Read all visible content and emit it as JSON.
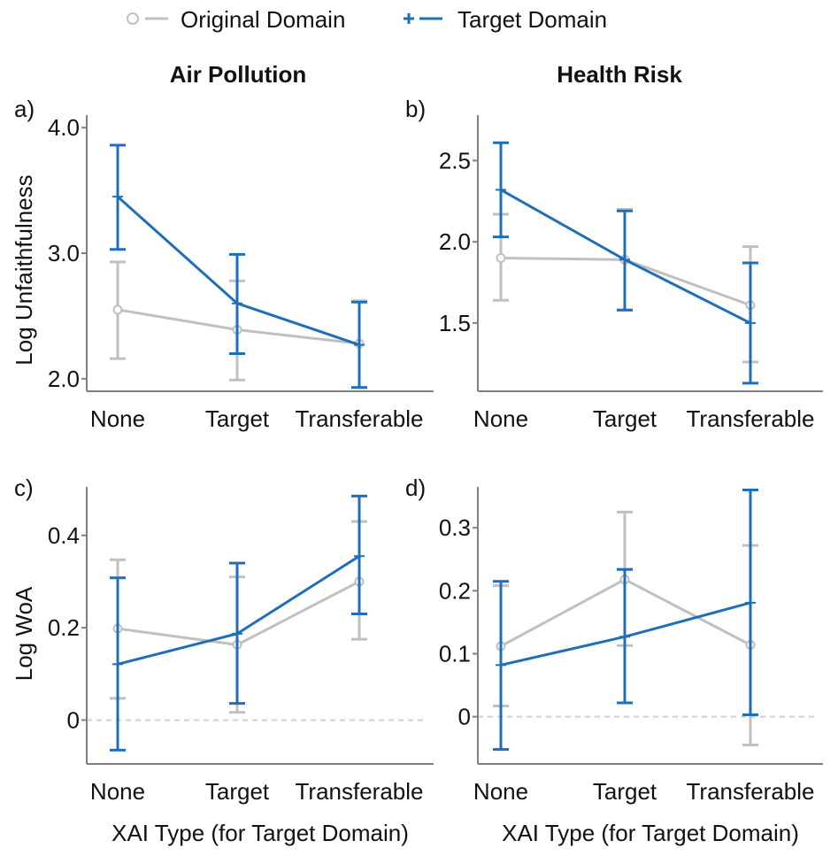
{
  "legend": {
    "original_label": "Original Domain",
    "target_label": "Target Domain"
  },
  "colors": {
    "original": "#c0c0c0",
    "target": "#1f6fb8",
    "axis": "#808080",
    "zero_line": "#d0d0d0"
  },
  "column_titles": [
    "Air Pollution",
    "Health Risk"
  ],
  "chart_data": [
    {
      "type": "line",
      "panel_tag": "a)",
      "title": "Air Pollution",
      "ylabel": "Log Unfaithfulness",
      "xlabel": "",
      "categories": [
        "None",
        "Target",
        "Transferable"
      ],
      "ylim": [
        1.9,
        4.1
      ],
      "yticks": [
        2.0,
        3.0,
        4.0
      ],
      "ytick_labels": [
        "2.0",
        "3.0",
        "4.0"
      ],
      "zero_line": false,
      "series": [
        {
          "name": "Original Domain",
          "values": [
            2.55,
            2.39,
            2.28
          ],
          "lower": [
            2.16,
            1.99,
            1.93
          ],
          "upper": [
            2.93,
            2.78,
            2.62
          ]
        },
        {
          "name": "Target Domain",
          "values": [
            3.45,
            2.6,
            2.27
          ],
          "lower": [
            3.03,
            2.2,
            1.93
          ],
          "upper": [
            3.86,
            2.99,
            2.61
          ]
        }
      ]
    },
    {
      "type": "line",
      "panel_tag": "b)",
      "title": "Health Risk",
      "ylabel": "",
      "xlabel": "",
      "categories": [
        "None",
        "Target",
        "Transferable"
      ],
      "ylim": [
        1.08,
        2.78
      ],
      "yticks": [
        1.5,
        2.0,
        2.5
      ],
      "ytick_labels": [
        "1.5",
        "2.0",
        "2.5"
      ],
      "zero_line": false,
      "series": [
        {
          "name": "Original Domain",
          "values": [
            1.9,
            1.89,
            1.61
          ],
          "lower": [
            1.64,
            1.58,
            1.26
          ],
          "upper": [
            2.17,
            2.2,
            1.97
          ]
        },
        {
          "name": "Target Domain",
          "values": [
            2.32,
            1.89,
            1.5
          ],
          "lower": [
            2.03,
            1.58,
            1.13
          ],
          "upper": [
            2.61,
            2.19,
            1.87
          ]
        }
      ]
    },
    {
      "type": "line",
      "panel_tag": "c)",
      "title": "",
      "ylabel": "Log WoA",
      "xlabel": "XAI Type (for Target Domain)",
      "categories": [
        "None",
        "Target",
        "Transferable"
      ],
      "ylim": [
        -0.095,
        0.505
      ],
      "yticks": [
        0,
        0.2,
        0.4
      ],
      "ytick_labels": [
        "0",
        "0.2",
        "0.4"
      ],
      "zero_line": true,
      "series": [
        {
          "name": "Original Domain",
          "values": [
            0.198,
            0.163,
            0.3
          ],
          "lower": [
            0.047,
            0.017,
            0.175
          ],
          "upper": [
            0.347,
            0.31,
            0.43
          ]
        },
        {
          "name": "Target Domain",
          "values": [
            0.121,
            0.187,
            0.355
          ],
          "lower": [
            -0.065,
            0.036,
            0.23
          ],
          "upper": [
            0.308,
            0.34,
            0.485
          ]
        }
      ]
    },
    {
      "type": "line",
      "panel_tag": "d)",
      "title": "",
      "ylabel": "",
      "xlabel": "XAI Type (for Target Domain)",
      "categories": [
        "None",
        "Target",
        "Transferable"
      ],
      "ylim": [
        -0.075,
        0.365
      ],
      "yticks": [
        0,
        0.1,
        0.2,
        0.3
      ],
      "ytick_labels": [
        "0",
        "0.1",
        "0.2",
        "0.3"
      ],
      "zero_line": true,
      "series": [
        {
          "name": "Original Domain",
          "values": [
            0.112,
            0.218,
            0.114
          ],
          "lower": [
            0.017,
            0.113,
            -0.045
          ],
          "upper": [
            0.208,
            0.325,
            0.272
          ]
        },
        {
          "name": "Target Domain",
          "values": [
            0.082,
            0.127,
            0.181
          ],
          "lower": [
            -0.052,
            0.022,
            0.003
          ],
          "upper": [
            0.215,
            0.234,
            0.36
          ]
        }
      ]
    }
  ]
}
